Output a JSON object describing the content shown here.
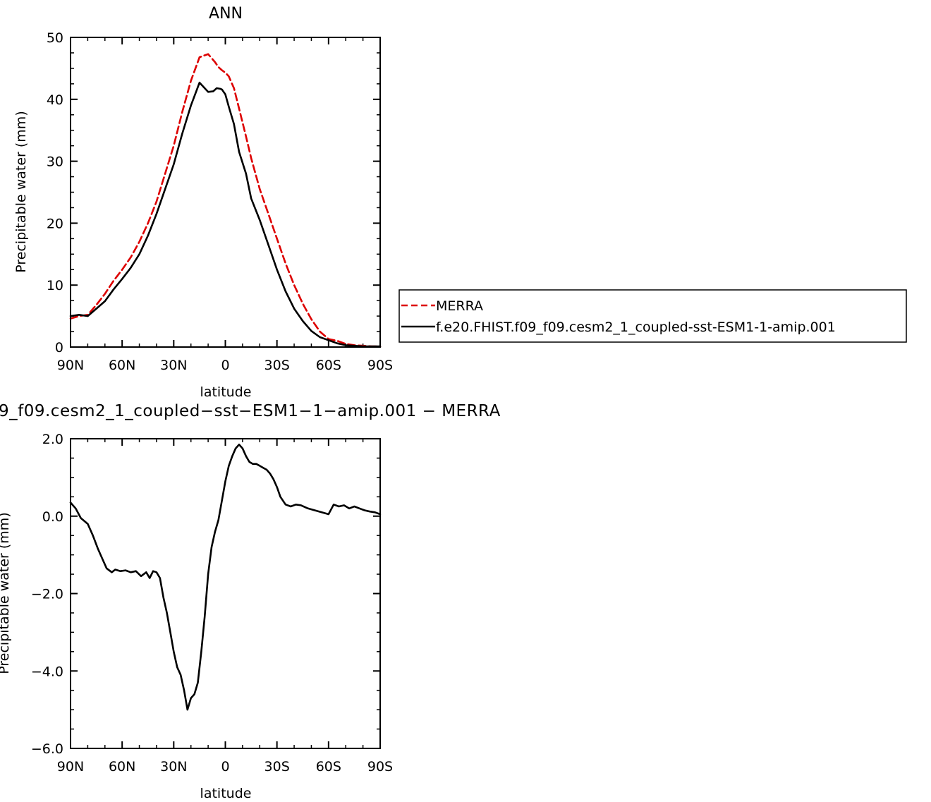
{
  "chart_data": [
    {
      "type": "line",
      "title": "ANN",
      "xlabel": "latitude",
      "ylabel": "Precipitable water (mm)",
      "ylim": [
        0,
        50
      ],
      "xlim": [
        90,
        -90
      ],
      "x_ticks": [
        90,
        60,
        30,
        0,
        -30,
        -60,
        -90
      ],
      "x_tick_labels": [
        "90N",
        "60N",
        "30N",
        "0",
        "30S",
        "60S",
        "90S"
      ],
      "y_ticks": [
        0,
        10,
        20,
        30,
        40,
        50
      ],
      "y_tick_labels": [
        "0",
        "10",
        "20",
        "30",
        "40",
        "50"
      ],
      "legend": {
        "placement": "right",
        "entries": [
          "MERRA",
          "f.e20.FHIST.f09_f09.cesm2_1_coupled-sst-ESM1-1-amip.001"
        ]
      },
      "series": [
        {
          "name": "MERRA",
          "color": "#dd0000",
          "dash": "dashed",
          "x": [
            90,
            85,
            80,
            75,
            70,
            65,
            60,
            55,
            50,
            45,
            40,
            35,
            30,
            25,
            20,
            15,
            10,
            6,
            4,
            2,
            0,
            -2,
            -5,
            -8,
            -12,
            -15,
            -20,
            -25,
            -30,
            -35,
            -40,
            -45,
            -50,
            -55,
            -60,
            -65,
            -70,
            -75,
            -80,
            -85,
            -90
          ],
          "y": [
            4.6,
            5.0,
            5.2,
            6.8,
            8.6,
            10.7,
            12.5,
            14.5,
            17.0,
            20.0,
            23.5,
            28.0,
            32.5,
            38.0,
            43.0,
            46.8,
            47.3,
            46.0,
            45.2,
            44.7,
            44.3,
            43.7,
            41.8,
            38.5,
            34.0,
            30.5,
            25.5,
            21.5,
            17.5,
            13.5,
            10.0,
            7.0,
            4.5,
            2.5,
            1.3,
            1.0,
            0.5,
            0.3,
            0.2,
            0.1,
            0.1
          ]
        },
        {
          "name": "f.e20.FHIST.f09_f09.cesm2_1_coupled-sst-ESM1-1-amip.001",
          "color": "#000000",
          "dash": "solid",
          "x": [
            90,
            85,
            80,
            75,
            70,
            65,
            60,
            55,
            50,
            45,
            40,
            35,
            30,
            25,
            20,
            15,
            10,
            7,
            5,
            3,
            2,
            0,
            -2,
            -5,
            -8,
            -12,
            -15,
            -20,
            -25,
            -30,
            -35,
            -40,
            -45,
            -50,
            -55,
            -60,
            -65,
            -70,
            -75,
            -80,
            -85,
            -90
          ],
          "y": [
            5.0,
            5.2,
            5.0,
            6.2,
            7.4,
            9.3,
            11.0,
            12.8,
            15.0,
            18.0,
            21.5,
            25.5,
            29.5,
            34.5,
            39.0,
            42.7,
            41.2,
            41.3,
            41.8,
            41.7,
            41.6,
            40.8,
            38.8,
            36.0,
            31.5,
            28.0,
            24.0,
            20.5,
            16.5,
            12.5,
            9.0,
            6.2,
            4.2,
            2.6,
            1.6,
            1.1,
            0.6,
            0.3,
            0.2,
            0.1,
            0.1,
            0.1
          ]
        }
      ]
    },
    {
      "type": "line",
      "title": "9_f09.cesm2_1_coupled-sst-ESM1-1-amip.001 - MERRA",
      "xlabel": "latitude",
      "ylabel": "Precipitable water (mm)",
      "ylim": [
        -6,
        2
      ],
      "xlim": [
        90,
        -90
      ],
      "x_ticks": [
        90,
        60,
        30,
        0,
        -30,
        -60,
        -90
      ],
      "x_tick_labels": [
        "90N",
        "60N",
        "30N",
        "0",
        "30S",
        "60S",
        "90S"
      ],
      "y_ticks": [
        -6,
        -4,
        -2,
        0,
        2
      ],
      "y_tick_labels": [
        "-6.0",
        "-4.0",
        "-2.0",
        "0.0",
        "2.0"
      ],
      "series": [
        {
          "color": "#000000",
          "dash": "solid",
          "x": [
            90,
            87,
            84,
            80,
            77,
            74,
            71,
            69,
            66,
            64,
            61,
            58,
            55,
            52,
            49,
            46,
            44,
            42,
            40,
            38,
            36,
            34,
            32,
            30,
            28,
            26,
            24,
            22,
            20,
            18,
            16,
            14,
            12,
            10,
            8,
            6,
            4,
            2,
            0,
            -2,
            -4,
            -6,
            -8,
            -10,
            -12,
            -14,
            -16,
            -18,
            -20,
            -22,
            -24,
            -26,
            -28,
            -30,
            -32,
            -35,
            -38,
            -41,
            -44,
            -48,
            -52,
            -56,
            -60,
            -63,
            -66,
            -69,
            -72,
            -75,
            -78,
            -81,
            -84,
            -87,
            -90
          ],
          "y": [
            0.35,
            0.2,
            -0.05,
            -0.2,
            -0.5,
            -0.85,
            -1.15,
            -1.35,
            -1.45,
            -1.38,
            -1.42,
            -1.4,
            -1.45,
            -1.42,
            -1.55,
            -1.45,
            -1.6,
            -1.42,
            -1.45,
            -1.6,
            -2.1,
            -2.5,
            -3.0,
            -3.5,
            -3.9,
            -4.1,
            -4.5,
            -5.0,
            -4.7,
            -4.6,
            -4.3,
            -3.5,
            -2.6,
            -1.5,
            -0.8,
            -0.4,
            -0.1,
            0.4,
            0.9,
            1.3,
            1.55,
            1.75,
            1.85,
            1.75,
            1.55,
            1.4,
            1.35,
            1.35,
            1.3,
            1.25,
            1.2,
            1.1,
            0.95,
            0.75,
            0.5,
            0.3,
            0.25,
            0.3,
            0.28,
            0.2,
            0.15,
            0.1,
            0.05,
            0.3,
            0.25,
            0.28,
            0.2,
            0.25,
            0.2,
            0.15,
            0.12,
            0.1,
            0.05
          ]
        }
      ]
    }
  ]
}
